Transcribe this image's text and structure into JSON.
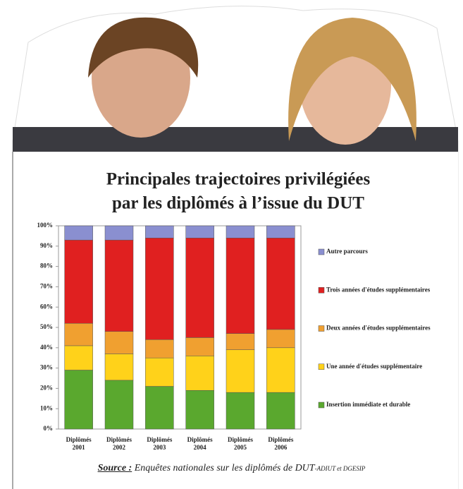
{
  "chart_data": {
    "type": "stacked-bar",
    "title": [
      "Principales trajectoires privilégiées",
      "par les diplômés à l’issue du DUT"
    ],
    "categories": [
      "Diplômés 2001",
      "Diplômés 2002",
      "Diplômés 2003",
      "Diplômés 2004",
      "Diplômés 2005",
      "Diplômés 2006"
    ],
    "series": [
      {
        "name": "Insertion immédiate et durable",
        "color": "#5aa82e",
        "values": [
          29,
          24,
          21,
          19,
          18,
          18
        ]
      },
      {
        "name": "Une année d'études supplémentaire",
        "color": "#ffd21a",
        "values": [
          12,
          13,
          14,
          17,
          21,
          22
        ]
      },
      {
        "name": "Deux années d'études supplémentaires",
        "color": "#f0a030",
        "values": [
          11,
          11,
          9,
          9,
          8,
          9
        ]
      },
      {
        "name": "Trois années d'études supplémentaires",
        "color": "#e02020",
        "values": [
          41,
          45,
          50,
          49,
          47,
          45
        ]
      },
      {
        "name": "Autre parcours",
        "color": "#8a8fd0",
        "values": [
          7,
          7,
          6,
          6,
          6,
          6
        ]
      }
    ],
    "ylim": [
      0,
      100
    ],
    "yticks": [
      {
        "value": 0,
        "label": "0%"
      },
      {
        "value": 10,
        "label": "10%"
      },
      {
        "value": 20,
        "label": "20%"
      },
      {
        "value": 30,
        "label": "30%"
      },
      {
        "value": 40,
        "label": "40%"
      },
      {
        "value": 50,
        "label": "50%"
      },
      {
        "value": 60,
        "label": "60%"
      },
      {
        "value": 70,
        "label": "70%"
      },
      {
        "value": 80,
        "label": "80%"
      },
      {
        "value": 90,
        "label": "90%"
      },
      {
        "value": 100,
        "label": "100%"
      }
    ],
    "legend": "right",
    "source": {
      "label": "Source :",
      "text": "Enquêtes nationales sur les diplômés de DUT",
      "suffix": "-ADIUT et DGESIP"
    }
  }
}
